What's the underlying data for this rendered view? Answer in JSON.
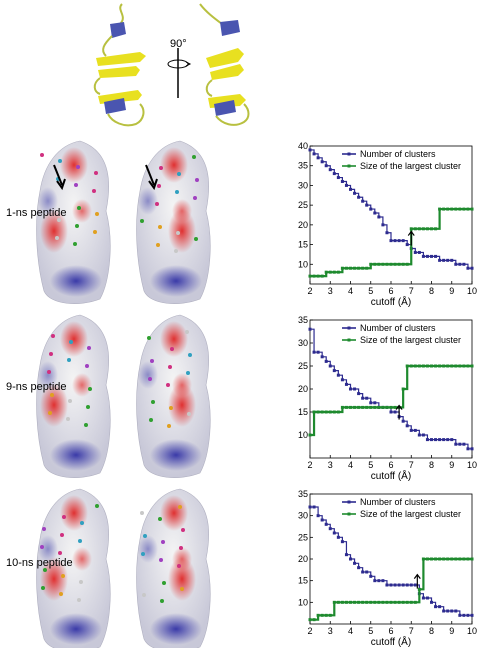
{
  "figure": {
    "rotation_label": "90°",
    "rows": [
      {
        "label": "1-ns peptide"
      },
      {
        "label": "9-ns peptide"
      },
      {
        "label": "10-ns peptide"
      }
    ]
  },
  "colors": {
    "clusters_series": "#2d2b8f",
    "largest_series": "#1e8a2e",
    "ribbon_helix": "#4a55b0",
    "ribbon_sheet": "#e8e020",
    "ribbon_coil": "#b8c040",
    "surface_neg": "#e03030",
    "surface_pos": "#3a3aa8",
    "surface_neutral": "#eeeeee"
  },
  "chart_data": [
    {
      "type": "line",
      "xlabel": "cutoff (Å)",
      "ylabel": "",
      "xlim": [
        2,
        10
      ],
      "ylim": [
        5,
        40
      ],
      "xticks": [
        2,
        3,
        4,
        5,
        6,
        7,
        8,
        9,
        10
      ],
      "yticks": [
        10,
        15,
        20,
        25,
        30,
        35,
        40
      ],
      "legend_position": "top-right",
      "arrow_x": 7.0,
      "series": [
        {
          "name": "Number of clusters",
          "color": "#2d2b8f",
          "marker": "square",
          "x": [
            2.0,
            2.2,
            2.4,
            2.6,
            2.8,
            3.0,
            3.2,
            3.4,
            3.6,
            3.8,
            4.0,
            4.2,
            4.4,
            4.6,
            4.8,
            5.0,
            5.2,
            5.4,
            5.6,
            5.8,
            6.0,
            6.2,
            6.4,
            6.6,
            6.8,
            7.0,
            7.2,
            7.4,
            7.6,
            7.8,
            8.0,
            8.2,
            8.4,
            8.6,
            8.8,
            9.0,
            9.2,
            9.4,
            9.6,
            9.8,
            10.0
          ],
          "y": [
            39,
            38,
            37,
            36,
            35,
            34,
            33,
            32,
            31,
            30,
            29,
            28,
            27,
            26,
            25,
            24,
            23,
            22,
            20,
            18,
            16,
            16,
            16,
            16,
            15,
            14,
            13,
            13,
            12,
            12,
            12,
            12,
            11,
            11,
            11,
            11,
            10,
            10,
            10,
            9,
            9
          ]
        },
        {
          "name": "Size of the largest cluster",
          "color": "#1e8a2e",
          "marker": "square",
          "x": [
            2.0,
            2.2,
            2.4,
            2.6,
            2.8,
            3.0,
            3.2,
            3.4,
            3.6,
            3.8,
            4.0,
            4.2,
            4.4,
            4.6,
            4.8,
            5.0,
            5.2,
            5.4,
            5.6,
            5.8,
            6.0,
            6.2,
            6.4,
            6.6,
            6.8,
            7.0,
            7.2,
            7.4,
            7.6,
            7.8,
            8.0,
            8.2,
            8.4,
            8.6,
            8.8,
            9.0,
            9.2,
            9.4,
            9.6,
            9.8,
            10.0
          ],
          "y": [
            7,
            7,
            7,
            7,
            8,
            8,
            8,
            8,
            9,
            9,
            9,
            9,
            9,
            9,
            9,
            10,
            10,
            10,
            10,
            10,
            10,
            10,
            10,
            10,
            10,
            19,
            19,
            19,
            19,
            19,
            19,
            19,
            24,
            24,
            24,
            24,
            24,
            24,
            24,
            24,
            24
          ]
        }
      ]
    },
    {
      "type": "line",
      "xlabel": "cutoff (Å)",
      "ylabel": "",
      "xlim": [
        2,
        10
      ],
      "ylim": [
        5,
        35
      ],
      "xticks": [
        2,
        3,
        4,
        5,
        6,
        7,
        8,
        9,
        10
      ],
      "yticks": [
        10,
        15,
        20,
        25,
        30,
        35
      ],
      "legend_position": "top-right",
      "arrow_x": 6.4,
      "series": [
        {
          "name": "Number of clusters",
          "color": "#2d2b8f",
          "marker": "square",
          "x": [
            2.0,
            2.2,
            2.4,
            2.6,
            2.8,
            3.0,
            3.2,
            3.4,
            3.6,
            3.8,
            4.0,
            4.2,
            4.4,
            4.6,
            4.8,
            5.0,
            5.2,
            5.4,
            5.6,
            5.8,
            6.0,
            6.2,
            6.4,
            6.6,
            6.8,
            7.0,
            7.2,
            7.4,
            7.6,
            7.8,
            8.0,
            8.2,
            8.4,
            8.6,
            8.8,
            9.0,
            9.2,
            9.4,
            9.6,
            9.8,
            10.0
          ],
          "y": [
            33,
            28,
            28,
            27,
            26,
            25,
            24,
            23,
            22,
            21,
            20,
            20,
            19,
            18,
            18,
            17,
            17,
            16,
            16,
            16,
            15,
            15,
            14,
            13,
            12,
            11,
            11,
            10,
            10,
            9,
            9,
            9,
            9,
            9,
            9,
            9,
            8,
            8,
            8,
            7,
            7
          ]
        },
        {
          "name": "Size of the largest cluster",
          "color": "#1e8a2e",
          "marker": "square",
          "x": [
            2.0,
            2.2,
            2.4,
            2.6,
            2.8,
            3.0,
            3.2,
            3.4,
            3.6,
            3.8,
            4.0,
            4.2,
            4.4,
            4.6,
            4.8,
            5.0,
            5.2,
            5.4,
            5.6,
            5.8,
            6.0,
            6.2,
            6.4,
            6.6,
            6.8,
            7.0,
            7.2,
            7.4,
            7.6,
            7.8,
            8.0,
            8.2,
            8.4,
            8.6,
            8.8,
            9.0,
            9.2,
            9.4,
            9.6,
            9.8,
            10.0
          ],
          "y": [
            10,
            15,
            15,
            15,
            15,
            15,
            15,
            15,
            16,
            16,
            16,
            16,
            16,
            16,
            16,
            16,
            16,
            16,
            16,
            16,
            16,
            16,
            16,
            20,
            25,
            25,
            25,
            25,
            25,
            25,
            25,
            25,
            25,
            25,
            25,
            25,
            25,
            25,
            25,
            25,
            25
          ]
        }
      ]
    },
    {
      "type": "line",
      "xlabel": "cutoff (Å)",
      "ylabel": "",
      "xlim": [
        2,
        10
      ],
      "ylim": [
        5,
        35
      ],
      "xticks": [
        2,
        3,
        4,
        5,
        6,
        7,
        8,
        9,
        10
      ],
      "yticks": [
        10,
        15,
        20,
        25,
        30,
        35
      ],
      "legend_position": "top-right",
      "arrow_x": 7.3,
      "series": [
        {
          "name": "Number of clusters",
          "color": "#2d2b8f",
          "marker": "square",
          "x": [
            2.0,
            2.2,
            2.4,
            2.6,
            2.8,
            3.0,
            3.2,
            3.4,
            3.6,
            3.8,
            4.0,
            4.2,
            4.4,
            4.6,
            4.8,
            5.0,
            5.2,
            5.4,
            5.6,
            5.8,
            6.0,
            6.2,
            6.4,
            6.6,
            6.8,
            7.0,
            7.2,
            7.4,
            7.6,
            7.8,
            8.0,
            8.2,
            8.4,
            8.6,
            8.8,
            9.0,
            9.2,
            9.4,
            9.6,
            9.8,
            10.0
          ],
          "y": [
            32,
            32,
            30,
            29,
            28,
            27,
            26,
            25,
            24,
            21,
            20,
            19,
            18,
            17,
            17,
            16,
            15,
            15,
            15,
            14,
            14,
            14,
            14,
            14,
            14,
            14,
            14,
            12,
            11,
            11,
            10,
            9,
            9,
            8,
            8,
            8,
            8,
            7,
            7,
            7,
            7
          ]
        },
        {
          "name": "Size of the largest cluster",
          "color": "#1e8a2e",
          "marker": "square",
          "x": [
            2.0,
            2.2,
            2.4,
            2.6,
            2.8,
            3.0,
            3.2,
            3.4,
            3.6,
            3.8,
            4.0,
            4.2,
            4.4,
            4.6,
            4.8,
            5.0,
            5.2,
            5.4,
            5.6,
            5.8,
            6.0,
            6.2,
            6.4,
            6.6,
            6.8,
            7.0,
            7.2,
            7.4,
            7.6,
            7.8,
            8.0,
            8.2,
            8.4,
            8.6,
            8.8,
            9.0,
            9.2,
            9.4,
            9.6,
            9.8,
            10.0
          ],
          "y": [
            6,
            6,
            7,
            7,
            7,
            7,
            10,
            10,
            10,
            10,
            10,
            10,
            10,
            10,
            10,
            10,
            10,
            10,
            10,
            10,
            10,
            10,
            10,
            10,
            10,
            10,
            10,
            13,
            20,
            20,
            20,
            20,
            20,
            20,
            20,
            20,
            20,
            20,
            20,
            20,
            20
          ]
        }
      ]
    }
  ]
}
